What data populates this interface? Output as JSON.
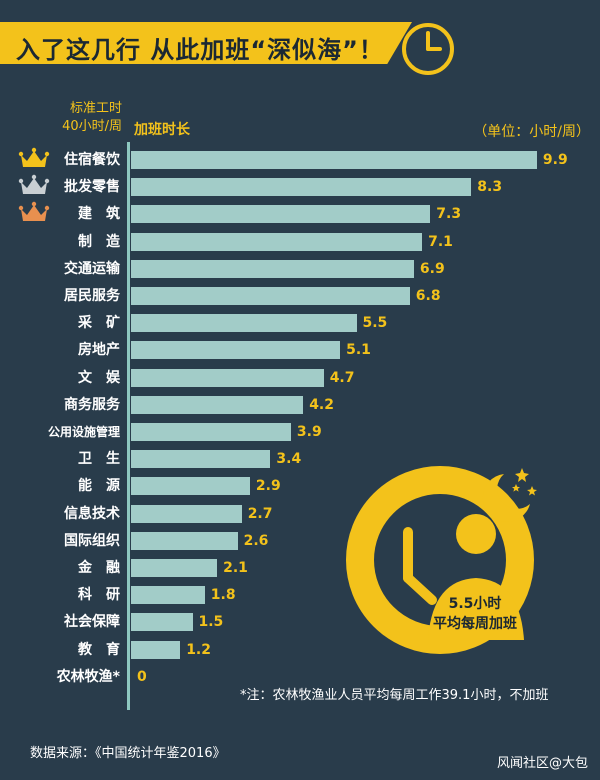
{
  "title": "入了这几行 从此加班“深似海”！",
  "header": {
    "std_hours_line1": "标准工时",
    "std_hours_line2": "40小时/周",
    "overtime_label": "加班时长",
    "unit": "（单位：小时/周）"
  },
  "chart_data": {
    "type": "bar",
    "orientation": "horizontal",
    "categories": [
      "住宿餐饮",
      "批发零售",
      "建　筑",
      "制　造",
      "交通运输",
      "居民服务",
      "采　矿",
      "房地产",
      "文　娱",
      "商务服务",
      "公用设施管理",
      "卫　生",
      "能　源",
      "信息技术",
      "国际组织",
      "金　融",
      "科　研",
      "社会保障",
      "教　育",
      "农林牧渔*"
    ],
    "values": [
      9.9,
      8.3,
      7.3,
      7.1,
      6.9,
      6.8,
      5.5,
      5.1,
      4.7,
      4.2,
      3.9,
      3.4,
      2.9,
      2.7,
      2.6,
      2.1,
      1.8,
      1.5,
      1.2,
      0
    ],
    "value_labels": [
      "9.9",
      "8.3",
      "7.3",
      "7.1",
      "6.9",
      "6.8",
      "5.5",
      "5.1",
      "4.7",
      "4.2",
      "3.9",
      "3.4",
      "2.9",
      "2.7",
      "2.6",
      "2.1",
      "1.8",
      "1.5",
      "1.2",
      "0"
    ],
    "title": "",
    "xlabel": "加班时长",
    "ylabel": "",
    "xlim": [
      0,
      10
    ],
    "grid": false
  },
  "ranking_crowns": [
    "gold",
    "silver",
    "bronze"
  ],
  "colors": {
    "background": "#293c4b",
    "accent": "#f3c21b",
    "bar": "#a2ccc8",
    "crown_gold": "#f3c21b",
    "crown_silver": "#c9cfd3",
    "crown_bronze": "#e8904f"
  },
  "average": {
    "value_text": "5.5小时",
    "label": "平均每周加班"
  },
  "note": "*注：农林牧渔业人员平均每周工作39.1小时，不加班",
  "source": "数据来源：《中国统计年鉴2016》",
  "credit": "风闻社区@大包"
}
